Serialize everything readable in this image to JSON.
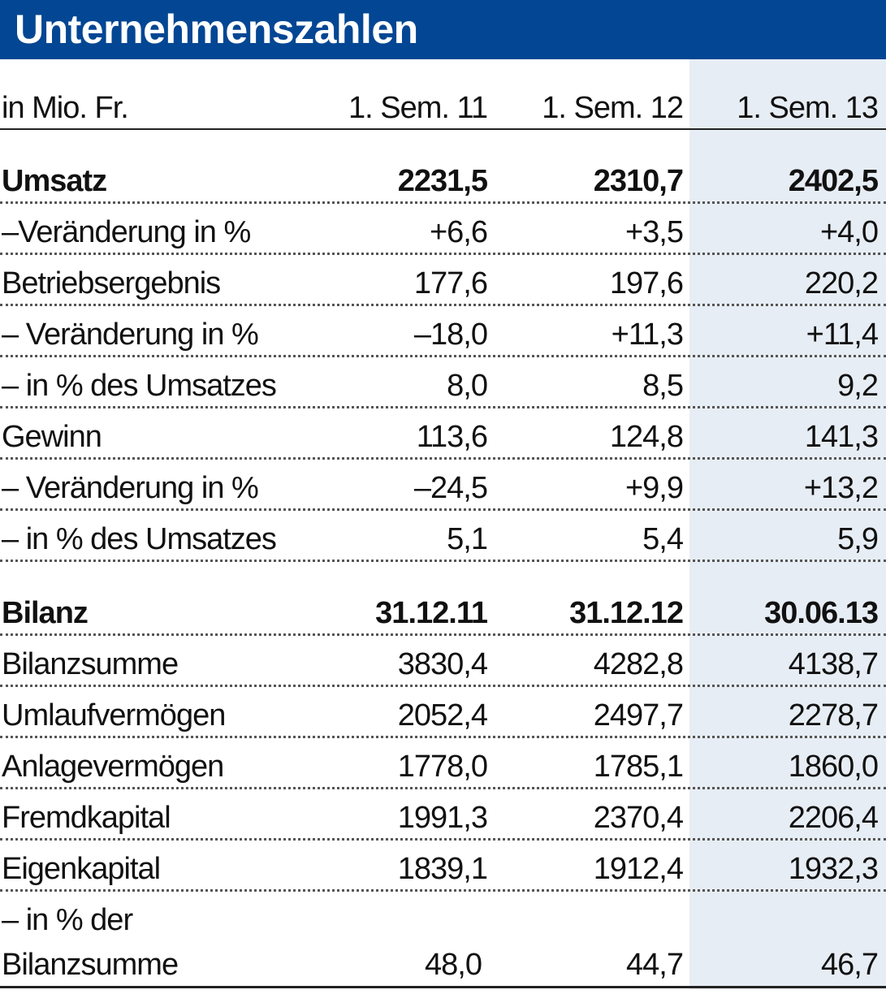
{
  "title": "Unternehmenszahlen",
  "colors": {
    "header_bg": "#034693",
    "header_text": "#ffffff",
    "shade": "#e7edf4"
  },
  "header_row": {
    "unit": "in Mio. Fr.",
    "col1": "1. Sem.  11",
    "col2": "1. Sem. 12",
    "col3": "1. Sem. 13"
  },
  "income": {
    "section": {
      "label": "Umsatz",
      "v1": "2231,5",
      "v2": "2310,7",
      "v3": "2402,5"
    },
    "rows": [
      {
        "label": "–Veränderung in %",
        "v1": "+6,6",
        "v2": "+3,5",
        "v3": "+4,0"
      },
      {
        "label": "Betriebsergebnis",
        "v1": "177,6",
        "v2": "197,6",
        "v3": "220,2"
      },
      {
        "label": "– Veränderung in %",
        "v1": "–18,0",
        "v2": "+11,3",
        "v3": "+11,4"
      },
      {
        "label": "– in % des Umsatzes",
        "v1": "8,0",
        "v2": "8,5",
        "v3": "9,2"
      },
      {
        "label": "Gewinn",
        "v1": "113,6",
        "v2": "124,8",
        "v3": "141,3"
      },
      {
        "label": "– Veränderung in %",
        "v1": "–24,5",
        "v2": "+9,9",
        "v3": "+13,2"
      },
      {
        "label": "– in % des Umsatzes",
        "v1": "5,1",
        "v2": "5,4",
        "v3": "5,9"
      }
    ]
  },
  "balance": {
    "section": {
      "label": "Bilanz",
      "v1": "31.12.11",
      "v2": "31.12.12",
      "v3": "30.06.13"
    },
    "rows": [
      {
        "label": "Bilanzsumme",
        "v1": "3830,4",
        "v2": "4282,8",
        "v3": "4138,7"
      },
      {
        "label": "Umlaufvermögen",
        "v1": "2052,4",
        "v2": "2497,7",
        "v3": "2278,7"
      },
      {
        "label": "Anlagevermögen",
        "v1": "1778,0",
        "v2": "1785,1",
        "v3": "1860,0"
      },
      {
        "label": "Fremdkapital",
        "v1": "1991,3",
        "v2": "2370,4",
        "v3": "2206,4"
      },
      {
        "label": "Eigenkapital",
        "v1": "1839,1",
        "v2": "1912,4",
        "v3": "1932,3"
      }
    ],
    "last": {
      "label_line1": "– in % der",
      "label_line2": "Bilanzsumme",
      "v1": "48,0",
      "v2": "44,7",
      "v3": "46,7"
    }
  }
}
